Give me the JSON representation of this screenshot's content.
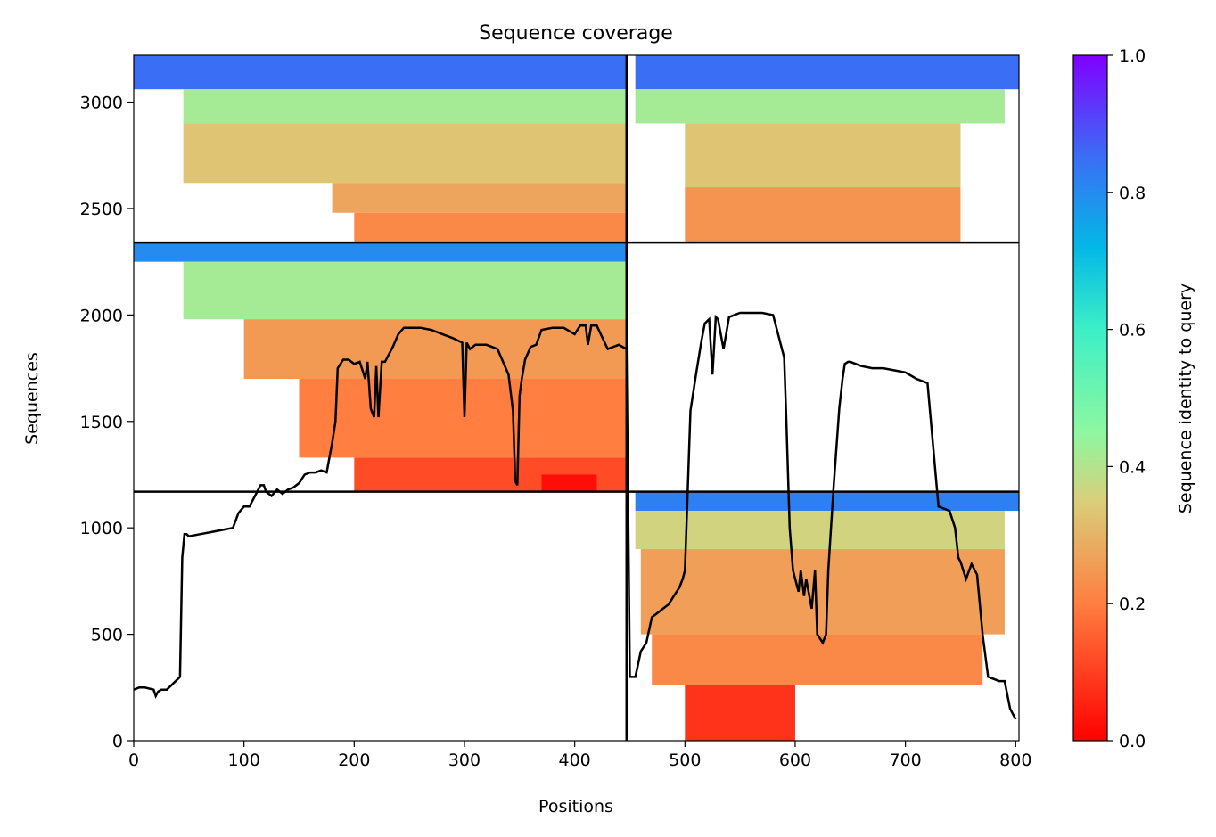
{
  "chart_data": {
    "type": "heatmap",
    "title": "Sequence coverage",
    "xlabel": "Positions",
    "ylabel": "Sequences",
    "xlim": [
      0,
      803
    ],
    "ylim": [
      0,
      3220
    ],
    "xticks": [
      0,
      100,
      200,
      300,
      400,
      500,
      600,
      700,
      800
    ],
    "yticks": [
      0,
      500,
      1000,
      1500,
      2000,
      2500,
      3000
    ],
    "colorbar": {
      "label": "Sequence identity to query",
      "range": [
        0.0,
        1.0
      ],
      "ticks": [
        "0.0",
        "0.2",
        "0.4",
        "0.6",
        "0.8",
        "1.0"
      ],
      "colormap": "rainbow_r"
    },
    "dividers": {
      "x": [
        447
      ],
      "y": [
        1170,
        2340
      ]
    },
    "bands": [
      {
        "x": [
          0,
          447
        ],
        "y": [
          3060,
          3220
        ],
        "identity": 0.85
      },
      {
        "x": [
          45,
          447
        ],
        "y": [
          2900,
          3060
        ],
        "identity": 0.42
      },
      {
        "x": [
          45,
          447
        ],
        "y": [
          2620,
          2900
        ],
        "identity": 0.33
      },
      {
        "x": [
          180,
          447
        ],
        "y": [
          2480,
          2620
        ],
        "identity": 0.27
      },
      {
        "x": [
          200,
          447
        ],
        "y": [
          2340,
          2480
        ],
        "identity": 0.22
      },
      {
        "x": [
          455,
          803
        ],
        "y": [
          3060,
          3220
        ],
        "identity": 0.85
      },
      {
        "x": [
          455,
          790
        ],
        "y": [
          2900,
          3060
        ],
        "identity": 0.42
      },
      {
        "x": [
          500,
          750
        ],
        "y": [
          2600,
          2900
        ],
        "identity": 0.33
      },
      {
        "x": [
          500,
          750
        ],
        "y": [
          2340,
          2600
        ],
        "identity": 0.24
      },
      {
        "x": [
          0,
          447
        ],
        "y": [
          2250,
          2340
        ],
        "identity": 0.8
      },
      {
        "x": [
          45,
          447
        ],
        "y": [
          1980,
          2250
        ],
        "identity": 0.42
      },
      {
        "x": [
          100,
          447
        ],
        "y": [
          1700,
          1980
        ],
        "identity": 0.25
      },
      {
        "x": [
          150,
          447
        ],
        "y": [
          1330,
          1700
        ],
        "identity": 0.2
      },
      {
        "x": [
          200,
          447
        ],
        "y": [
          1170,
          1330
        ],
        "identity": 0.12
      },
      {
        "x": [
          370,
          420
        ],
        "y": [
          1170,
          1250
        ],
        "identity": 0.02
      },
      {
        "x": [
          455,
          803
        ],
        "y": [
          1080,
          1170
        ],
        "identity": 0.82
      },
      {
        "x": [
          455,
          790
        ],
        "y": [
          900,
          1080
        ],
        "identity": 0.36
      },
      {
        "x": [
          460,
          790
        ],
        "y": [
          500,
          900
        ],
        "identity": 0.26
      },
      {
        "x": [
          470,
          770
        ],
        "y": [
          260,
          500
        ],
        "identity": 0.22
      },
      {
        "x": [
          500,
          600
        ],
        "y": [
          0,
          260
        ],
        "identity": 0.08
      }
    ],
    "coverage_line": {
      "x": [
        0,
        5,
        10,
        18,
        20,
        22,
        25,
        30,
        38,
        42,
        44,
        46,
        48,
        50,
        60,
        70,
        80,
        90,
        95,
        100,
        105,
        110,
        115,
        118,
        120,
        125,
        130,
        135,
        140,
        145,
        150,
        155,
        160,
        165,
        170,
        175,
        180,
        183,
        185,
        190,
        195,
        200,
        205,
        210,
        212,
        215,
        218,
        220,
        222,
        225,
        228,
        230,
        235,
        240,
        245,
        250,
        260,
        270,
        280,
        290,
        298,
        300,
        302,
        305,
        310,
        320,
        330,
        340,
        344,
        346,
        348,
        350,
        352,
        355,
        360,
        365,
        370,
        380,
        390,
        400,
        405,
        410,
        412,
        415,
        420,
        430,
        440,
        447,
        450,
        455,
        460,
        465,
        470,
        475,
        480,
        485,
        490,
        495,
        498,
        500,
        505,
        510,
        515,
        518,
        520,
        522,
        525,
        528,
        530,
        535,
        540,
        550,
        560,
        570,
        580,
        585,
        590,
        592,
        595,
        598,
        600,
        603,
        605,
        608,
        610,
        615,
        618,
        620,
        625,
        628,
        630,
        635,
        640,
        643,
        645,
        648,
        650,
        655,
        660,
        670,
        680,
        690,
        700,
        710,
        720,
        730,
        740,
        745,
        748,
        750,
        755,
        760,
        765,
        770,
        775,
        780,
        785,
        790,
        795,
        800,
        803
      ],
      "y": [
        240,
        250,
        250,
        240,
        210,
        230,
        240,
        240,
        280,
        300,
        860,
        970,
        970,
        960,
        970,
        980,
        990,
        1000,
        1070,
        1100,
        1100,
        1150,
        1200,
        1200,
        1170,
        1150,
        1180,
        1160,
        1180,
        1190,
        1210,
        1250,
        1260,
        1260,
        1270,
        1260,
        1400,
        1500,
        1750,
        1790,
        1790,
        1770,
        1780,
        1700,
        1780,
        1560,
        1520,
        1760,
        1520,
        1780,
        1780,
        1800,
        1850,
        1910,
        1940,
        1940,
        1940,
        1930,
        1910,
        1890,
        1870,
        1520,
        1870,
        1840,
        1860,
        1860,
        1840,
        1720,
        1550,
        1220,
        1200,
        1620,
        1700,
        1790,
        1850,
        1860,
        1930,
        1940,
        1940,
        1910,
        1950,
        1950,
        1860,
        1950,
        1950,
        1840,
        1860,
        1840,
        300,
        300,
        420,
        460,
        580,
        600,
        620,
        640,
        680,
        720,
        760,
        800,
        1550,
        1720,
        1880,
        1960,
        1970,
        1980,
        1720,
        1990,
        1980,
        1840,
        1990,
        2010,
        2010,
        2010,
        2000,
        1900,
        1800,
        1500,
        1000,
        800,
        760,
        700,
        800,
        680,
        760,
        620,
        800,
        500,
        460,
        500,
        800,
        1200,
        1560,
        1700,
        1770,
        1780,
        1780,
        1770,
        1760,
        1750,
        1750,
        1740,
        1730,
        1700,
        1680,
        1100,
        1080,
        1000,
        860,
        840,
        760,
        830,
        780,
        500,
        300,
        290,
        280,
        280,
        150,
        100
      ]
    }
  }
}
